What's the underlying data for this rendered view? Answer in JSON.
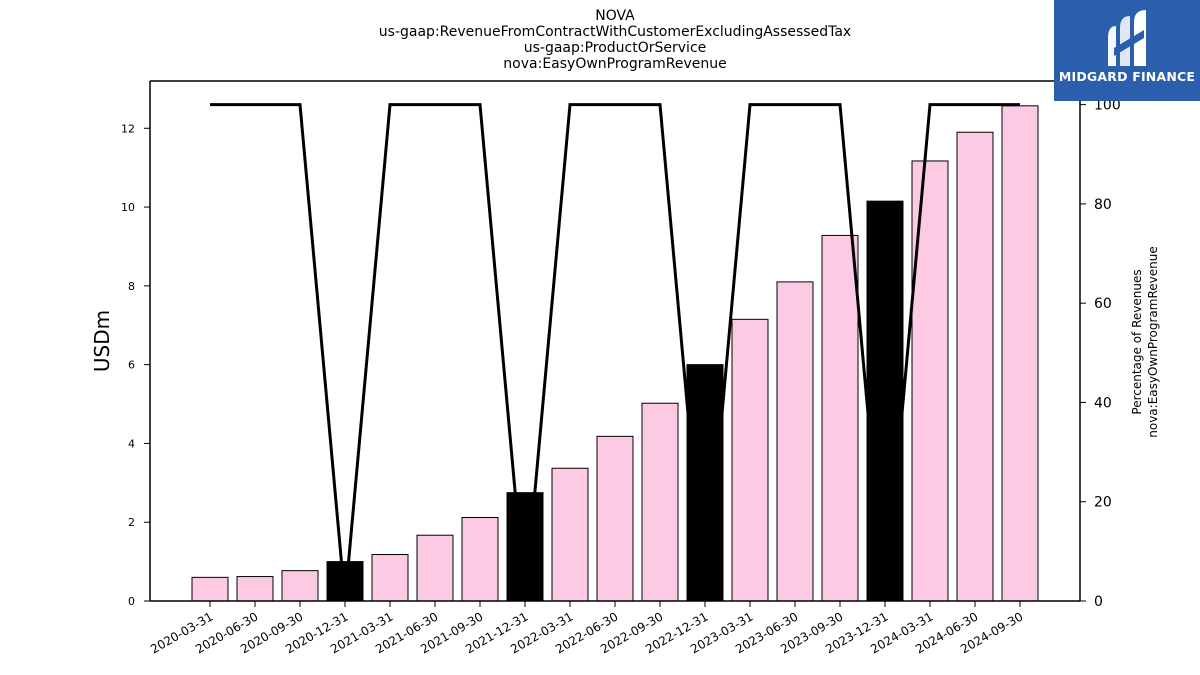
{
  "header": {
    "lines": [
      "NOVA",
      "us-gaap:RevenueFromContractWithCustomerExcludingAssessedTax",
      "us-gaap:ProductOrService",
      "nova:EasyOwnProgramRevenue"
    ]
  },
  "logo": {
    "text": "MIDGARD FINANCE",
    "background": "#2b5fad"
  },
  "chart_data": {
    "type": "bar",
    "categories": [
      "2020-03-31",
      "2020-06-30",
      "2020-09-30",
      "2020-12-31",
      "2021-03-31",
      "2021-06-30",
      "2021-09-30",
      "2021-12-31",
      "2022-03-31",
      "2022-06-30",
      "2022-09-30",
      "2022-12-31",
      "2023-03-31",
      "2023-06-30",
      "2023-09-30",
      "2023-12-31",
      "2024-03-31",
      "2024-06-30",
      "2024-09-30"
    ],
    "series": [
      {
        "type": "bar",
        "axis": "left",
        "values": [
          0.6,
          0.62,
          0.77,
          1.0,
          1.18,
          1.67,
          2.12,
          2.75,
          3.37,
          4.18,
          5.02,
          6.0,
          7.15,
          8.1,
          9.28,
          10.15,
          11.17,
          11.9,
          12.57
        ],
        "colors": [
          "#fccbe3",
          "#fccbe3",
          "#fccbe3",
          "#000000",
          "#fccbe3",
          "#fccbe3",
          "#fccbe3",
          "#000000",
          "#fccbe3",
          "#fccbe3",
          "#fccbe3",
          "#000000",
          "#fccbe3",
          "#fccbe3",
          "#fccbe3",
          "#000000",
          "#fccbe3",
          "#fccbe3",
          "#fccbe3"
        ]
      },
      {
        "type": "line",
        "axis": "right",
        "color": "#000000",
        "values": [
          100,
          100,
          100,
          0,
          100,
          100,
          100,
          0,
          100,
          100,
          100,
          0,
          100,
          100,
          100,
          0,
          100,
          100,
          100
        ]
      }
    ],
    "ylabel": "USDm",
    "ylabel_right": [
      "Percentage of Revenues",
      "nova:EasyOwnProgramRevenue"
    ],
    "ylim": [
      0,
      13.2
    ],
    "ylim_right": [
      0,
      104.76
    ],
    "yticks": [
      0,
      2,
      4,
      6,
      8,
      10,
      12
    ],
    "yticks_right": [
      0,
      20,
      40,
      60,
      80,
      100
    ],
    "grid": false,
    "legend": "none"
  }
}
